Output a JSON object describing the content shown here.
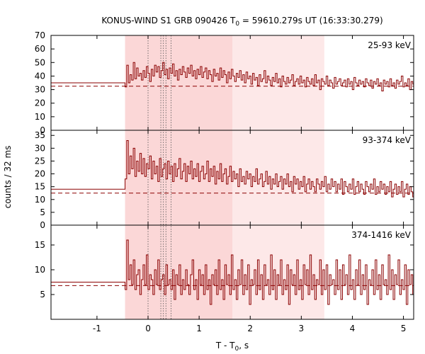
{
  "chart_data": {
    "type": "line",
    "title_main": "KONUS-WIND S1 GRB 090426 T",
    "title_sub": "0",
    "title_rest": " = 59610.279s UT (16:33:30.279)",
    "xlabel_main": "T - T",
    "xlabel_sub": "0",
    "xlabel_rest": ", s",
    "ylabel": "counts / 32 ms",
    "xlim": [
      -1.9,
      5.2
    ],
    "xticks": [
      -1,
      0,
      1,
      2,
      3,
      4,
      5
    ],
    "grid": false,
    "line_color": "#8b0000",
    "shade_outer": [
      -0.45,
      3.45
    ],
    "shade_inner": [
      -0.45,
      1.65
    ],
    "shade_outer_color": "#fde8e8",
    "shade_inner_color": "#fbd7d7",
    "dotted_lines": [
      0.0,
      0.25,
      0.3,
      0.35,
      0.45
    ],
    "dt": 0.032,
    "panels": [
      {
        "name": "25-93 keV",
        "ylim": [
          0,
          70
        ],
        "yticks": [
          0,
          10,
          20,
          30,
          40,
          50,
          60,
          70
        ],
        "background": 32.5,
        "pre_level": 35,
        "start": -0.45,
        "counts": [
          32,
          48,
          35,
          41,
          37,
          50,
          38,
          46,
          40,
          42,
          37,
          44,
          39,
          47,
          42,
          36,
          45,
          40,
          48,
          43,
          47,
          39,
          44,
          50,
          41,
          45,
          38,
          46,
          42,
          49,
          40,
          44,
          37,
          45,
          41,
          47,
          43,
          39,
          46,
          42,
          48,
          40,
          44,
          38,
          45,
          41,
          47,
          39,
          43,
          46,
          38,
          44,
          41,
          36,
          45,
          40,
          42,
          37,
          46,
          39,
          44,
          41,
          35,
          43,
          38,
          45,
          40,
          36,
          42,
          39,
          44,
          37,
          41,
          35,
          43,
          38,
          40,
          34,
          42,
          37,
          39,
          33,
          41,
          36,
          38,
          44,
          35,
          40,
          37,
          33,
          39,
          36,
          42,
          35,
          38,
          32,
          40,
          36,
          34,
          39,
          35,
          37,
          41,
          33,
          36,
          38,
          34,
          40,
          35,
          37,
          32,
          39,
          36,
          34,
          38,
          33,
          41,
          35,
          37,
          30,
          38,
          36,
          34,
          40,
          33,
          37,
          35,
          31,
          39,
          34,
          36,
          38,
          33,
          35,
          37,
          32,
          38,
          34,
          36,
          30,
          39,
          35,
          33,
          37,
          34,
          36,
          32,
          38,
          35,
          33,
          37,
          31,
          36,
          34,
          38,
          33,
          35,
          29,
          37,
          34,
          36,
          32,
          38,
          33,
          35,
          31,
          37,
          34,
          36,
          40,
          32,
          35,
          33,
          38,
          30,
          36,
          34,
          32,
          37,
          35,
          33,
          39,
          31,
          36,
          34,
          37,
          33,
          35,
          31,
          38,
          34,
          36,
          32,
          37,
          33,
          35,
          30,
          38,
          34,
          36,
          13,
          37,
          33,
          35,
          31,
          38,
          34,
          36,
          32,
          46,
          33,
          35,
          31,
          37,
          34,
          36,
          32,
          38,
          35,
          33,
          37,
          31,
          36,
          34,
          38,
          33,
          35,
          32,
          37,
          34,
          36,
          45,
          33,
          35,
          31,
          37,
          34,
          36
        ]
      },
      {
        "name": "93-374 keV",
        "ylim": [
          0,
          37
        ],
        "yticks": [
          0,
          5,
          10,
          15,
          20,
          25,
          30,
          35
        ],
        "background": 12.5,
        "pre_level": 14,
        "start": -0.45,
        "counts": [
          18,
          33,
          20,
          27,
          22,
          30,
          19,
          25,
          21,
          28,
          20,
          26,
          19,
          24,
          22,
          27,
          18,
          25,
          20,
          23,
          17,
          26,
          19,
          22,
          24,
          18,
          25,
          20,
          23,
          17,
          24,
          19,
          22,
          26,
          18,
          21,
          24,
          17,
          23,
          20,
          25,
          18,
          22,
          19,
          24,
          17,
          21,
          23,
          18,
          20,
          25,
          17,
          22,
          19,
          23,
          16,
          21,
          18,
          24,
          17,
          20,
          22,
          16,
          19,
          23,
          17,
          21,
          18,
          20,
          15,
          22,
          17,
          19,
          16,
          21,
          18,
          20,
          15,
          19,
          17,
          22,
          16,
          18,
          20,
          15,
          17,
          21,
          16,
          19,
          14,
          18,
          16,
          20,
          15,
          17,
          19,
          14,
          18,
          16,
          20,
          15,
          17,
          13,
          19,
          16,
          18,
          14,
          17,
          15,
          19,
          13,
          16,
          18,
          14,
          17,
          15,
          13,
          18,
          16,
          14,
          17,
          15,
          19,
          13,
          16,
          14,
          18,
          15,
          17,
          13,
          16,
          14,
          18,
          12,
          17,
          15,
          13,
          16,
          14,
          18,
          12,
          15,
          17,
          13,
          16,
          14,
          12,
          17,
          15,
          13,
          16,
          14,
          18,
          12,
          15,
          13,
          17,
          14,
          16,
          12,
          15,
          13,
          17,
          11,
          14,
          16,
          12,
          15,
          13,
          17,
          11,
          14,
          16,
          12,
          15,
          13,
          11,
          16,
          14,
          12,
          15,
          13,
          17,
          11,
          14,
          12,
          16,
          13,
          15,
          11,
          14,
          12,
          16,
          13,
          15,
          11,
          14,
          12,
          16,
          10,
          13,
          15,
          11,
          14,
          12,
          16,
          10,
          13,
          15,
          11,
          14,
          12,
          10,
          15,
          13,
          11,
          14,
          12,
          16,
          10,
          13,
          11,
          15,
          12,
          14,
          10,
          13,
          11,
          15,
          12,
          14,
          10,
          13,
          11,
          15,
          9,
          12,
          14,
          10,
          13
        ]
      },
      {
        "name": "374-1416 keV",
        "ylim": [
          0,
          19
        ],
        "yticks": [
          5,
          10,
          15
        ],
        "background": 6.8,
        "pre_level": 7.5,
        "start": -0.45,
        "counts": [
          6,
          16,
          8,
          11,
          7,
          12,
          6,
          9,
          10,
          5,
          8,
          11,
          7,
          13,
          6,
          9,
          8,
          5,
          10,
          7,
          12,
          6,
          8,
          9,
          5,
          11,
          7,
          8,
          6,
          10,
          4,
          9,
          7,
          11,
          5,
          8,
          6,
          10,
          7,
          5,
          9,
          12,
          6,
          8,
          4,
          10,
          7,
          9,
          5,
          11,
          6,
          8,
          3,
          9,
          7,
          10,
          5,
          12,
          6,
          8,
          4,
          11,
          7,
          9,
          5,
          13,
          6,
          8,
          4,
          10,
          7,
          12,
          5,
          9,
          6,
          11,
          3,
          8,
          7,
          10,
          5,
          12,
          6,
          9,
          4,
          11,
          7,
          8,
          5,
          13,
          6,
          10,
          4,
          9,
          7,
          12,
          5,
          8,
          6,
          11,
          3,
          10,
          7,
          9,
          5,
          12,
          6,
          8,
          4,
          11,
          7,
          10,
          5,
          13,
          6,
          9,
          4,
          8,
          7,
          12,
          5,
          10,
          6,
          11,
          3,
          9,
          7,
          8,
          5,
          12,
          6,
          10,
          4,
          11,
          7,
          9,
          5,
          13,
          6,
          8,
          4,
          10,
          7,
          12,
          5,
          9,
          6,
          11,
          3,
          8,
          7,
          10,
          5,
          12,
          6,
          9,
          4,
          11,
          7,
          8,
          5,
          13,
          6,
          10,
          4,
          9,
          7,
          12,
          5,
          8,
          6,
          11,
          3,
          10,
          7,
          9,
          5,
          12,
          6,
          8,
          4,
          11,
          7,
          10,
          5,
          13,
          6,
          9,
          4,
          8,
          7,
          12,
          5,
          10,
          6,
          11,
          3,
          9,
          7,
          8,
          5,
          12,
          6,
          10,
          4,
          11,
          7,
          9,
          5,
          13,
          6,
          8,
          4,
          10,
          7,
          12,
          5,
          9,
          6,
          11,
          3,
          8,
          7,
          10,
          5,
          12,
          6,
          9,
          4,
          11
        ]
      }
    ]
  }
}
